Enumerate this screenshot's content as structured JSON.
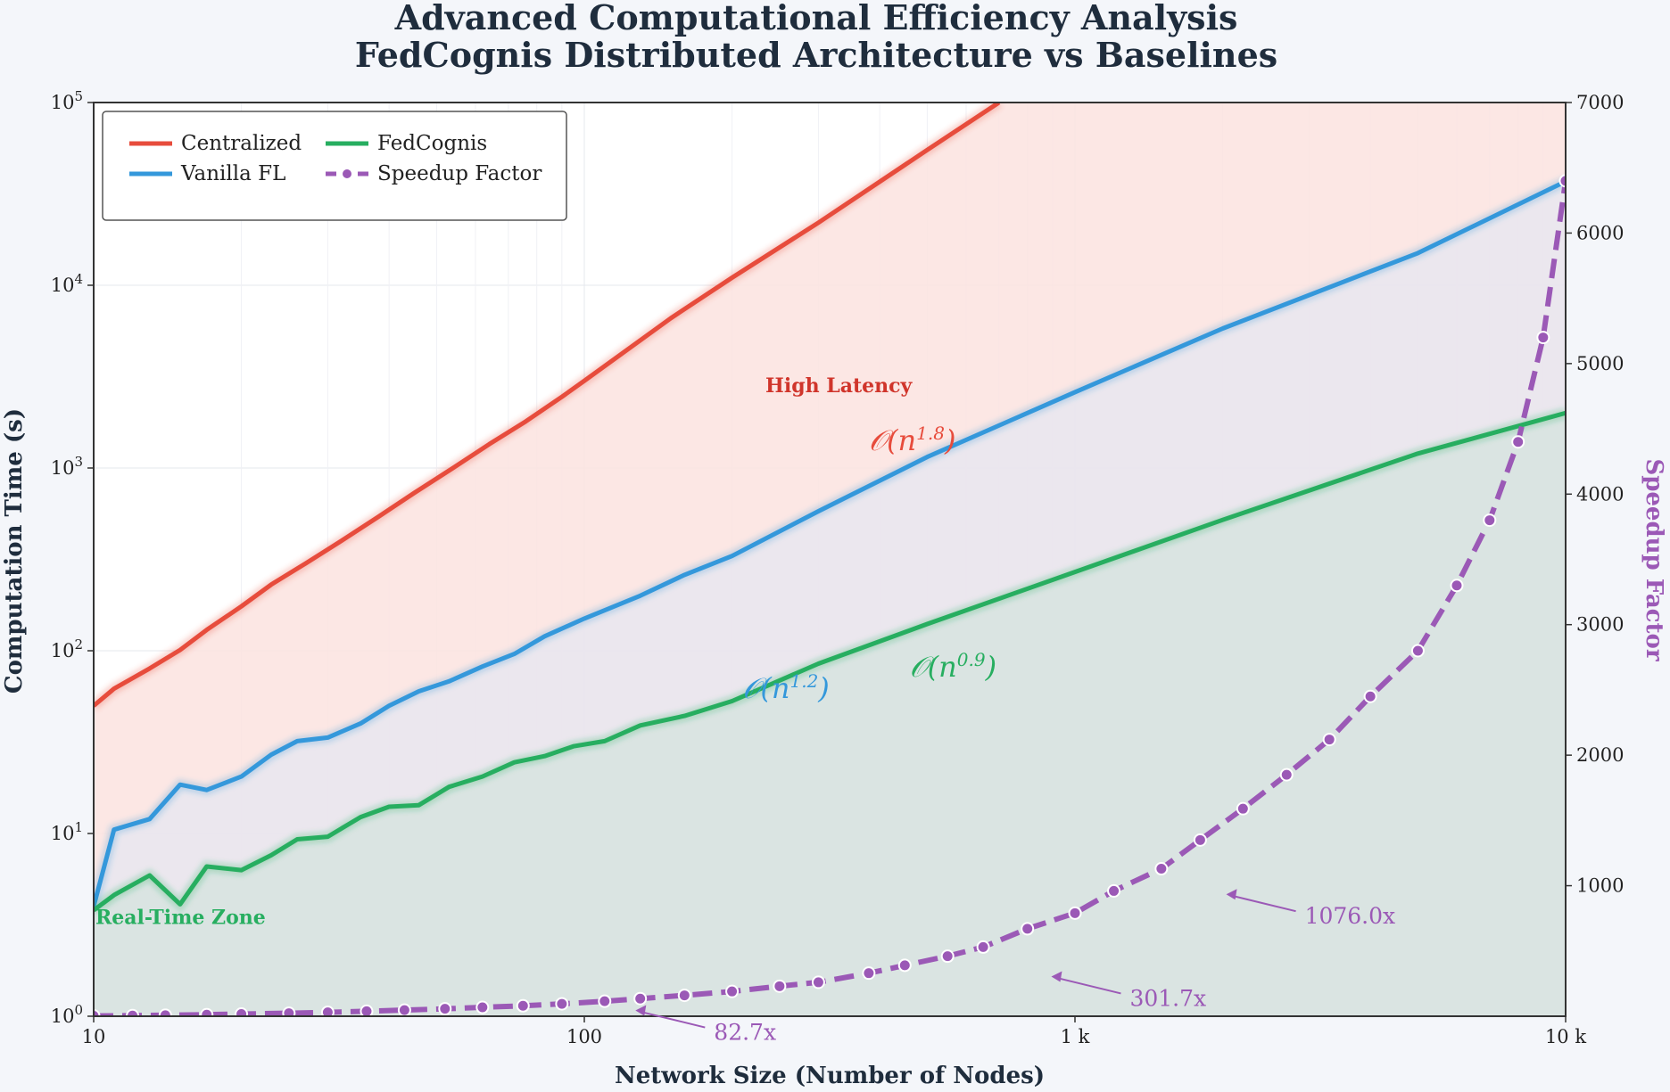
{
  "chart_data": {
    "type": "line",
    "title": "Advanced Computational Efficiency Analysis",
    "subtitle": "FedCognis Distributed Architecture vs Baselines",
    "xlabel": "Network Size (Number of Nodes)",
    "ylabel": "Computation Time (s)",
    "y2label": "Speedup Factor",
    "xscale": "log",
    "yscale": "log",
    "xlim": [
      10,
      10000
    ],
    "ylim": [
      1,
      100000
    ],
    "y2lim": [
      0,
      7000
    ],
    "x_ticks": [
      {
        "value": 10,
        "label": "10"
      },
      {
        "value": 100,
        "label": "100"
      },
      {
        "value": 1000,
        "label": "1 k"
      },
      {
        "value": 10000,
        "label": "10 k"
      }
    ],
    "y_ticks": [
      {
        "value": 1,
        "base": "10",
        "exp": "0"
      },
      {
        "value": 10,
        "base": "10",
        "exp": "1"
      },
      {
        "value": 100,
        "base": "10",
        "exp": "2"
      },
      {
        "value": 1000,
        "base": "10",
        "exp": "3"
      },
      {
        "value": 10000,
        "base": "10",
        "exp": "4"
      },
      {
        "value": 100000,
        "base": "10",
        "exp": "5"
      }
    ],
    "y2_ticks": [
      1000,
      2000,
      3000,
      4000,
      5000,
      6000,
      7000
    ],
    "legend_position": "top-left",
    "series": [
      {
        "name": "Centralized",
        "axis": "left",
        "color": "#e74c3c",
        "fill": "#fbe3df",
        "x": [
          10,
          11,
          13,
          15,
          17,
          20,
          23,
          27,
          32,
          38,
          45,
          54,
          64,
          76,
          90,
          100,
          150,
          200,
          300,
          500,
          700
        ],
        "values": [
          50,
          62,
          80,
          101,
          130,
          175,
          230,
          300,
          400,
          540,
          730,
          1000,
          1350,
          1800,
          2450,
          3000,
          6600,
          11000,
          22000,
          55000,
          100000
        ]
      },
      {
        "name": "Vanilla FL",
        "axis": "left",
        "color": "#3498db",
        "fill": "#e7e6f0",
        "x": [
          10,
          11,
          13,
          15,
          17,
          20,
          23,
          26,
          30,
          35,
          40,
          46,
          53,
          62,
          72,
          83,
          100,
          130,
          160,
          200,
          300,
          500,
          1000,
          2000,
          5000,
          10000
        ],
        "values": [
          4,
          10.5,
          12,
          18.5,
          17.3,
          20.5,
          27,
          32,
          33.5,
          40,
          50,
          60,
          68,
          82,
          96,
          120,
          150,
          200,
          260,
          330,
          580,
          1150,
          2600,
          5800,
          15000,
          37000
        ]
      },
      {
        "name": "FedCognis",
        "axis": "left",
        "color": "#27ae60",
        "fill": "#d7e3df",
        "x": [
          10,
          11,
          13,
          15,
          17,
          20,
          23,
          26,
          30,
          35,
          40,
          46,
          53,
          62,
          72,
          83,
          95,
          110,
          130,
          160,
          200,
          300,
          500,
          1000,
          2000,
          5000,
          10000
        ],
        "values": [
          3.8,
          4.6,
          5.9,
          4.1,
          6.6,
          6.3,
          7.6,
          9.3,
          9.6,
          12.3,
          14,
          14.3,
          18,
          20.5,
          24.5,
          26.5,
          30,
          32,
          39,
          44,
          53,
          85,
          140,
          270,
          520,
          1200,
          2000
        ]
      },
      {
        "name": "Speedup Factor",
        "axis": "right",
        "color": "#9b59b6",
        "x": [
          10,
          12,
          14,
          17,
          20,
          25,
          30,
          36,
          43,
          52,
          62,
          75,
          90,
          110,
          130,
          160,
          200,
          250,
          300,
          380,
          450,
          550,
          650,
          800,
          1000,
          1200,
          1500,
          1800,
          2200,
          2700,
          3300,
          4000,
          5000,
          6000,
          7000,
          8000,
          9000,
          10000
        ],
        "values": [
          3,
          5,
          8,
          12,
          17,
          23,
          30,
          38,
          47,
          57,
          68,
          80,
          95,
          115,
          135,
          160,
          190,
          230,
          260,
          330,
          390,
          460,
          530,
          670,
          790,
          960,
          1130,
          1350,
          1590,
          1850,
          2120,
          2450,
          2800,
          3300,
          3800,
          4400,
          5200,
          6400
        ]
      }
    ],
    "annotations": [
      {
        "text": "High Latency",
        "x": 330,
        "y": 2600,
        "color": "#d0352b",
        "kind": "zone"
      },
      {
        "text": "Real-Time Zone",
        "x": 10,
        "y": 3.2,
        "color": "#27ae60",
        "kind": "zone"
      },
      {
        "text": "𝒪(n",
        "sup": "1.8",
        "close": ")",
        "x": 380,
        "y": 1250,
        "color": "#e74c3c",
        "kind": "complexity"
      },
      {
        "text": "𝒪(n",
        "sup": "1.2",
        "close": ")",
        "x": 210,
        "y": 55,
        "color": "#3498db",
        "kind": "complexity"
      },
      {
        "text": "𝒪(n",
        "sup": "0.9",
        "close": ")",
        "x": 460,
        "y": 72,
        "color": "#27ae60",
        "kind": "complexity"
      },
      {
        "text": "82.7x",
        "x": 125,
        "y2": 10,
        "color": "#9b59b6",
        "kind": "speedup"
      },
      {
        "text": "301.7x",
        "x": 880,
        "y2": 270,
        "color": "#9b59b6",
        "kind": "speedup"
      },
      {
        "text": "1076.0x",
        "x": 2000,
        "y2": 900,
        "color": "#9b59b6",
        "kind": "speedup"
      }
    ]
  }
}
